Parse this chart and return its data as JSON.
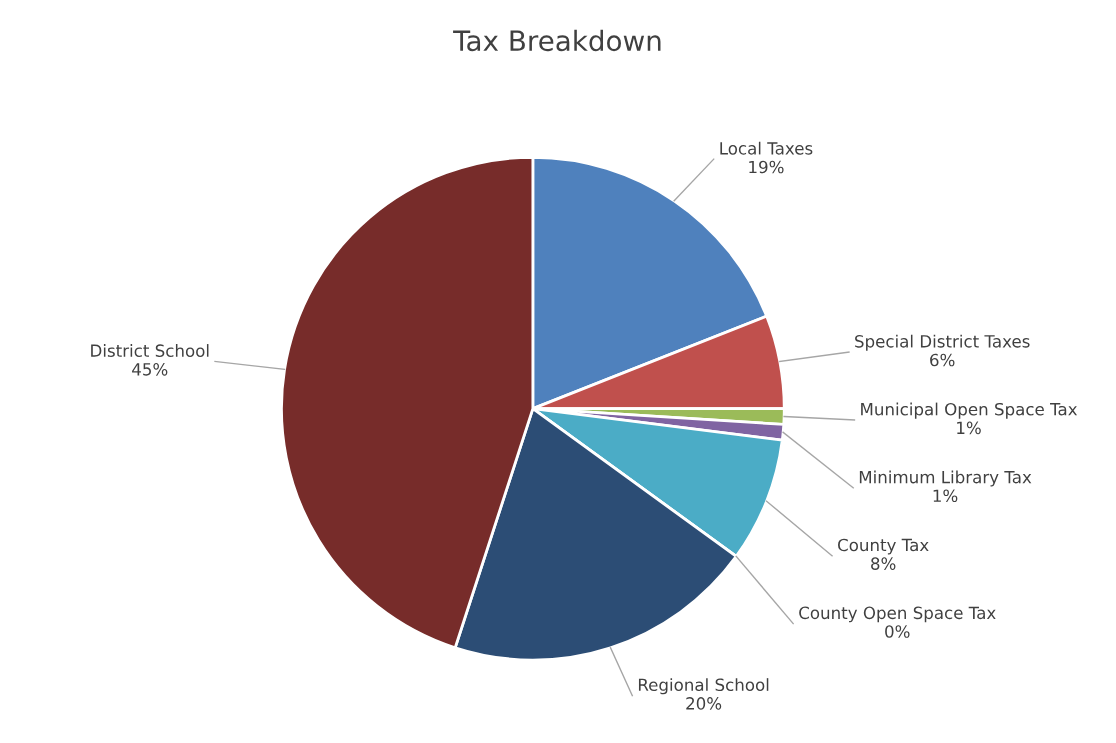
{
  "chart_data": {
    "type": "pie",
    "title": "Tax Breakdown",
    "categories": [
      "Local Taxes",
      "Special District Taxes",
      "Municipal Open Space Tax",
      "Minimum Library Tax",
      "County Tax",
      "County Open Space Tax",
      "Regional School",
      "District School"
    ],
    "values": [
      19,
      6,
      1,
      1,
      8,
      0,
      20,
      45
    ],
    "value_labels": [
      "19%",
      "6%",
      "1%",
      "1%",
      "8%",
      "0%",
      "20%",
      "45%"
    ],
    "colors": [
      "#4f81bd",
      "#c0504d",
      "#9bbb59",
      "#8064a2",
      "#4bacc6",
      "#f79646",
      "#2c4d75",
      "#772c2a"
    ]
  }
}
